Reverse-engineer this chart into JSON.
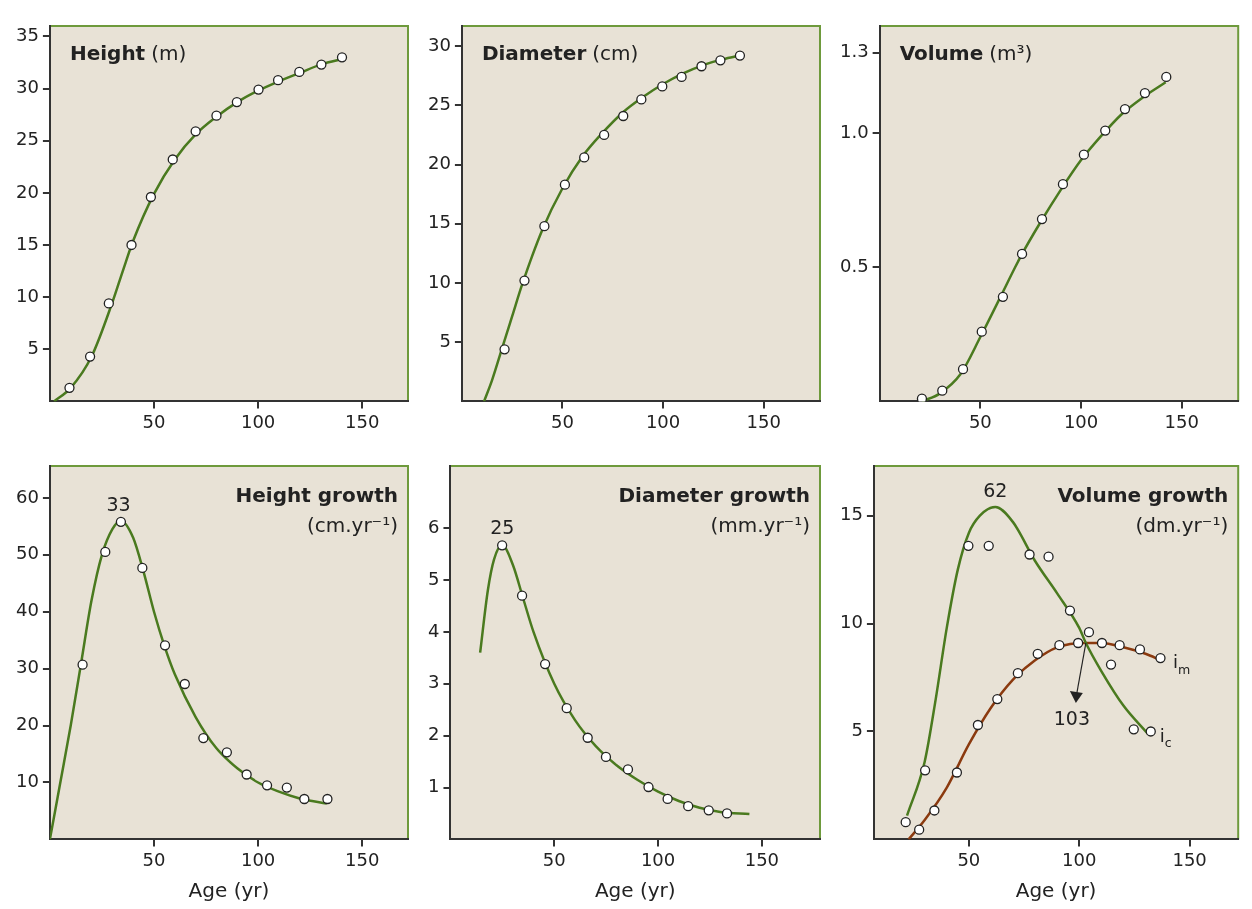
{
  "chart_data": [
    {
      "type": "line",
      "title": "Height",
      "subtitle": "(m)",
      "xlim": [
        0,
        172
      ],
      "xticks": [
        50,
        100,
        150
      ],
      "ylim": [
        0,
        36
      ],
      "yticks": [
        5,
        10,
        15,
        20,
        25,
        30,
        35
      ],
      "grid": false,
      "legend": false,
      "series": [
        {
          "color": "#4a7a1f",
          "x": [
            2,
            10,
            20,
            30,
            35,
            40,
            50,
            60,
            70,
            80,
            90,
            100,
            110,
            120,
            130,
            142
          ],
          "values": [
            0,
            1.3,
            4.3,
            9.5,
            12.5,
            15.4,
            19.9,
            23.2,
            25.6,
            27.3,
            28.7,
            29.8,
            30.7,
            31.5,
            32.3,
            32.9
          ]
        },
        {
          "type": "scatter",
          "color": "#ffffff",
          "marker": "circle",
          "x": [
            9.4,
            19.3,
            28.3,
            39.2,
            48.5,
            59,
            70,
            80,
            89.8,
            100.2,
            109.6,
            119.8,
            130.4,
            140.3
          ],
          "values": [
            1.3,
            4.3,
            9.4,
            15.0,
            19.6,
            23.2,
            25.9,
            27.4,
            28.7,
            29.9,
            30.8,
            31.6,
            32.3,
            33.0
          ]
        }
      ]
    },
    {
      "type": "line",
      "title": "Diameter",
      "subtitle": "(cm)",
      "xlim": [
        0,
        178
      ],
      "xticks": [
        50,
        100,
        150
      ],
      "ylim": [
        0,
        31.7
      ],
      "yticks": [
        5,
        10,
        15,
        20,
        25,
        30
      ],
      "grid": false,
      "legend": false,
      "series": [
        {
          "color": "#4a7a1f",
          "x": [
            11,
            15,
            20,
            25,
            30,
            40,
            50,
            60,
            70,
            80,
            90,
            100,
            110,
            120,
            130,
            138
          ],
          "values": [
            0,
            1.8,
            4.5,
            7.2,
            9.9,
            14.5,
            18.0,
            20.7,
            22.7,
            24.4,
            25.7,
            26.8,
            27.7,
            28.4,
            28.9,
            29.2
          ]
        },
        {
          "type": "scatter",
          "color": "#ffffff",
          "marker": "circle",
          "x": [
            21.2,
            31.1,
            41,
            51.2,
            60.8,
            70.7,
            80.2,
            89.2,
            99.6,
            109.2,
            119.1,
            128.5,
            138.2
          ],
          "values": [
            4.4,
            10.2,
            14.8,
            18.3,
            20.6,
            22.5,
            24.1,
            25.5,
            26.6,
            27.4,
            28.3,
            28.8,
            29.2
          ]
        }
      ]
    },
    {
      "type": "line",
      "title": "Volume",
      "subtitle": "(m³)",
      "xlim": [
        0,
        178
      ],
      "xticks": [
        50,
        100,
        150
      ],
      "ylim": [
        0,
        1.4
      ],
      "yticks": [
        0.5,
        {
          "value": 1,
          "label": "1.0"
        },
        1.3
      ],
      "grid": false,
      "legend": false,
      "series": [
        {
          "color": "#4a7a1f",
          "x": [
            21,
            30,
            40,
            50,
            60,
            70,
            80,
            90,
            100,
            110,
            120,
            130,
            142
          ],
          "values": [
            0,
            0.03,
            0.1,
            0.24,
            0.39,
            0.54,
            0.67,
            0.79,
            0.9,
            0.99,
            1.07,
            1.13,
            1.19
          ]
        },
        {
          "type": "scatter",
          "color": "#ffffff",
          "marker": "circle",
          "x": [
            21,
            31.1,
            41.4,
            50.7,
            61.2,
            70.7,
            80.6,
            91,
            101.4,
            112,
            121.8,
            131.7,
            142.3
          ],
          "values": [
            0.01,
            0.04,
            0.12,
            0.26,
            0.39,
            0.55,
            0.68,
            0.81,
            0.92,
            1.01,
            1.09,
            1.15,
            1.21
          ]
        }
      ]
    },
    {
      "type": "line",
      "title": "Height growth",
      "subtitle": "(cm.yr⁻¹)",
      "xlabel": "Age (yr)",
      "xlim": [
        0,
        172
      ],
      "xticks": [
        50,
        100,
        150
      ],
      "ylim": [
        0,
        65.6
      ],
      "yticks": [
        10,
        20,
        30,
        40,
        50,
        60
      ],
      "grid": false,
      "legend": false,
      "annotations": [
        {
          "text": "33",
          "x": 33,
          "y": 56
        }
      ],
      "series": [
        {
          "color": "#4a7a1f",
          "x": [
            0,
            5,
            10,
            15,
            20,
            25,
            30,
            34,
            40,
            45,
            50,
            55,
            60,
            70,
            80,
            90,
            100,
            110,
            120,
            133
          ],
          "values": [
            0,
            10,
            20,
            31,
            42,
            50,
            54.5,
            56,
            53,
            47,
            40,
            34,
            29,
            21.5,
            16,
            12.5,
            10,
            8.4,
            7.2,
            6.3
          ]
        },
        {
          "type": "scatter",
          "color": "#ffffff",
          "marker": "circle",
          "x": [
            15.7,
            26.6,
            34.1,
            44.4,
            55.3,
            64.8,
            73.7,
            85,
            94.5,
            104.3,
            113.8,
            122.2,
            133.3
          ],
          "values": [
            30.7,
            50.5,
            55.8,
            47.7,
            34.1,
            27.3,
            17.8,
            15.3,
            11.4,
            9.5,
            9.1,
            7.1,
            7.1
          ]
        }
      ]
    },
    {
      "type": "line",
      "title": "Diameter growth",
      "subtitle": "(mm.yr⁻¹)",
      "xlabel": "Age (yr)",
      "xlim": [
        0,
        178
      ],
      "xticks": [
        50,
        100,
        150
      ],
      "ylim": [
        0,
        7.2
      ],
      "yticks": [
        1,
        2,
        3,
        4,
        5,
        6
      ],
      "grid": false,
      "legend": false,
      "annotations": [
        {
          "text": "25",
          "x": 25,
          "y": 5.7
        }
      ],
      "series": [
        {
          "color": "#4a7a1f",
          "x": [
            14.3,
            18,
            21,
            25,
            30,
            35,
            40,
            50,
            60,
            70,
            80,
            90,
            100,
            110,
            120,
            130,
            144
          ],
          "values": [
            3.6,
            4.8,
            5.4,
            5.67,
            5.3,
            4.65,
            4.0,
            3.0,
            2.3,
            1.8,
            1.43,
            1.15,
            0.92,
            0.74,
            0.61,
            0.53,
            0.49
          ]
        },
        {
          "type": "scatter",
          "color": "#ffffff",
          "marker": "circle",
          "x": [
            24.9,
            34.5,
            45.6,
            56,
            66.1,
            74.9,
            85.5,
            95.4,
            104.6,
            114.5,
            124.4,
            133.2
          ],
          "values": [
            5.67,
            4.7,
            3.38,
            2.53,
            1.96,
            1.59,
            1.35,
            1.01,
            0.78,
            0.64,
            0.56,
            0.5
          ]
        }
      ]
    },
    {
      "type": "line",
      "title": "Volume growth",
      "subtitle": "(dm.yr⁻¹)",
      "xlabel": "Age (yr)",
      "xlim": [
        7,
        172
      ],
      "xticks": [
        50,
        100,
        150
      ],
      "ylim": [
        0,
        17.3
      ],
      "yticks": [
        5,
        10,
        15
      ],
      "grid": false,
      "legend": false,
      "annotations": [
        {
          "text": "62",
          "x": 62,
          "y": 15.4
        },
        {
          "text": "103",
          "x": 103,
          "y": 9.1
        }
      ],
      "series": [
        {
          "name": "i$_{c}$",
          "color": "#4a7a1f",
          "x": [
            22,
            30,
            35,
            40,
            45,
            50,
            55,
            62,
            70,
            80,
            90,
            100,
            103,
            110,
            120,
            131
          ],
          "values": [
            1.1,
            3.6,
            6.5,
            9.8,
            12.5,
            14.2,
            15.0,
            15.4,
            14.7,
            12.9,
            11.4,
            9.8,
            9.1,
            7.8,
            6.2,
            4.9
          ]
        },
        {
          "name": "i$_{m}$",
          "color": "#8b3a0f",
          "x": [
            22.7,
            30,
            40,
            50,
            60,
            70,
            80,
            90,
            103,
            110,
            120,
            130,
            137
          ],
          "values": [
            0,
            0.9,
            2.4,
            4.4,
            6.1,
            7.4,
            8.3,
            8.9,
            9.1,
            9.1,
            8.9,
            8.6,
            8.3
          ]
        },
        {
          "type": "scatter",
          "color": "#ffffff",
          "marker": "circle",
          "x": [
            21.4,
            30.2,
            49.8,
            59,
            77.5,
            86.1,
            95.8,
            104.4,
            114.4,
            124.7,
            132.4
          ],
          "values": [
            0.8,
            3.2,
            13.6,
            13.6,
            13.2,
            13.1,
            10.6,
            9.6,
            8.1,
            5.1,
            5.0
          ]
        },
        {
          "type": "scatter",
          "color": "#ffffff",
          "marker": "circle",
          "x": [
            27.5,
            34.4,
            44.6,
            54.1,
            62.9,
            72.2,
            81.2,
            91,
            99.5,
            110.3,
            118.3,
            127.5,
            136.8
          ],
          "values": [
            0.45,
            1.34,
            3.1,
            5.3,
            6.5,
            7.7,
            8.6,
            9.0,
            9.1,
            9.1,
            9.0,
            8.8,
            8.4
          ]
        }
      ]
    }
  ]
}
